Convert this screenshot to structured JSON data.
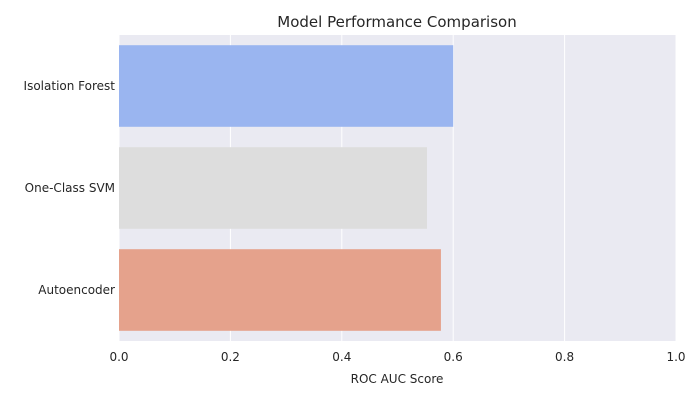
{
  "chart_data": {
    "type": "bar",
    "orientation": "horizontal",
    "title": "Model Performance Comparison",
    "xlabel": "ROC AUC Score",
    "ylabel": "",
    "xlim": [
      0,
      1
    ],
    "xticks": [
      0,
      0.2,
      0.4,
      0.6,
      0.8,
      1
    ],
    "xtick_labels": [
      "0.0",
      "0.2",
      "0.4",
      "0.6",
      "0.8",
      "1.0"
    ],
    "categories": [
      "Isolation Forest",
      "One-Class SVM",
      "Autoencoder"
    ],
    "values": [
      0.6,
      0.553,
      0.578
    ],
    "colors": [
      "#9ab5f0",
      "#dddddd",
      "#e5a28c"
    ],
    "background_color": "#eaeaf2",
    "grid": true,
    "legend": "none"
  }
}
